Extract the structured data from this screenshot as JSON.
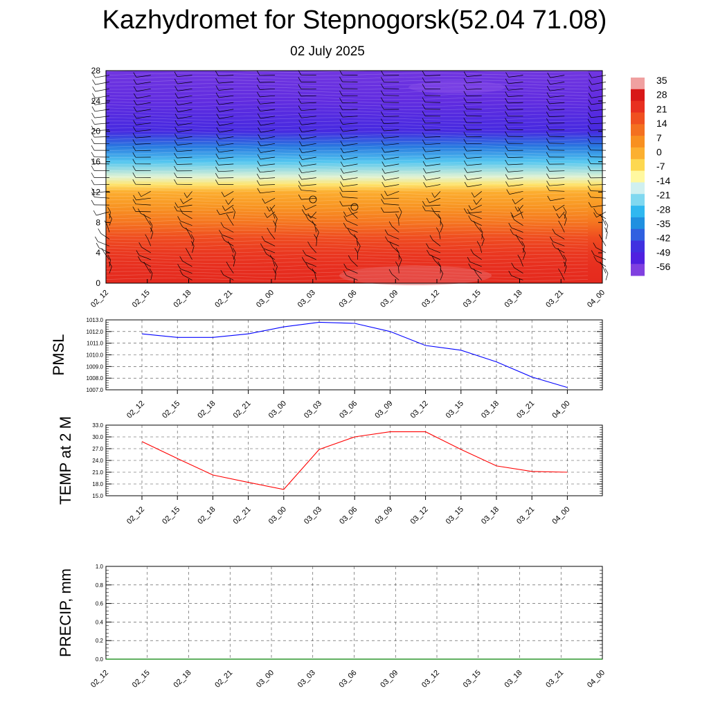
{
  "header": {
    "title": "Kazhydromet for Stepnogorsk(52.04 71.08)",
    "subtitle": "02 July 2025"
  },
  "chart_data": [
    {
      "type": "heatmap",
      "panel": "upper-air",
      "x": [
        "02_12",
        "02_15",
        "02_18",
        "02_21",
        "03_00",
        "03_03",
        "03_06",
        "03_09",
        "03_12",
        "03_15",
        "03_18",
        "03_21",
        "04_00"
      ],
      "y_ticks": [
        0,
        4,
        8,
        12,
        16,
        20,
        24,
        28
      ],
      "ylim": [
        0,
        28
      ],
      "colorbar": {
        "labels": [
          "35",
          "28",
          "21",
          "14",
          "7",
          "0",
          "-7",
          "-14",
          "-21",
          "-28",
          "-35",
          "-42",
          "-49",
          "-56"
        ],
        "colors": [
          "#f0a0a0",
          "#d81818",
          "#e83020",
          "#f05020",
          "#f47020",
          "#f89020",
          "#fcb030",
          "#fdd850",
          "#fff8a0",
          "#d0f0f0",
          "#80d8f0",
          "#30b8f0",
          "#2090e0",
          "#3060e0",
          "#4030e0",
          "#5020e0",
          "#8040e0"
        ]
      },
      "levels": [
        {
          "y": 0,
          "temp": 27
        },
        {
          "y": 2,
          "temp": 26
        },
        {
          "y": 4,
          "temp": 24
        },
        {
          "y": 6,
          "temp": 20
        },
        {
          "y": 8,
          "temp": 12
        },
        {
          "y": 10,
          "temp": 6
        },
        {
          "y": 12,
          "temp": 1
        },
        {
          "y": 13,
          "temp": -8
        },
        {
          "y": 14,
          "temp": -16
        },
        {
          "y": 16,
          "temp": -28
        },
        {
          "y": 18,
          "temp": -40
        },
        {
          "y": 20,
          "temp": -52
        },
        {
          "y": 24,
          "temp": -58
        },
        {
          "y": 28,
          "temp": -60
        }
      ],
      "wind_barbs": true,
      "grid": false
    },
    {
      "type": "line",
      "ylabel": "PMSL",
      "x": [
        "02_12",
        "02_15",
        "02_18",
        "02_21",
        "03_00",
        "03_03",
        "03_06",
        "03_09",
        "03_12",
        "03_15",
        "03_18",
        "03_21",
        "04_00"
      ],
      "series": [
        {
          "values": [
            1011.8,
            1011.5,
            1011.5,
            1011.8,
            1012.4,
            1012.8,
            1012.7,
            1012.0,
            1010.8,
            1010.4,
            1009.4,
            1008.1,
            1007.2
          ],
          "color": "#0000ff"
        }
      ],
      "ylim": [
        1007.0,
        1013.0
      ],
      "y_ticks": [
        "1007.0",
        "1008.0",
        "1009.0",
        "1010.0",
        "1011.0",
        "1012.0",
        "1013.0"
      ],
      "grid": true
    },
    {
      "type": "line",
      "ylabel": "TEMP at 2 M",
      "x": [
        "02_12",
        "02_15",
        "02_18",
        "02_21",
        "03_00",
        "03_03",
        "03_06",
        "03_09",
        "03_12",
        "03_15",
        "03_18",
        "03_21",
        "04_00"
      ],
      "series": [
        {
          "values": [
            28.8,
            24.5,
            20.3,
            18.4,
            16.6,
            26.8,
            30.0,
            31.3,
            31.3,
            26.8,
            22.6,
            21.2,
            21.0
          ],
          "color": "#ff0000"
        }
      ],
      "ylim": [
        15.0,
        33.0
      ],
      "y_ticks": [
        "15.0",
        "18.0",
        "21.0",
        "24.0",
        "27.0",
        "30.0",
        "33.0"
      ],
      "grid": true
    },
    {
      "type": "line",
      "ylabel": "PRECIP, mm",
      "x": [
        "02_12",
        "02_15",
        "02_18",
        "02_21",
        "03_00",
        "03_03",
        "03_06",
        "03_09",
        "03_12",
        "03_15",
        "03_18",
        "03_21",
        "04_00"
      ],
      "series": [
        {
          "values": [
            0,
            0,
            0,
            0,
            0,
            0,
            0,
            0,
            0,
            0,
            0,
            0,
            0
          ],
          "color": "#008000"
        }
      ],
      "ylim": [
        0.0,
        1.0
      ],
      "y_ticks": [
        "0.0",
        "0.2",
        "0.4",
        "0.6",
        "0.8",
        "1.0"
      ],
      "grid": true
    }
  ]
}
